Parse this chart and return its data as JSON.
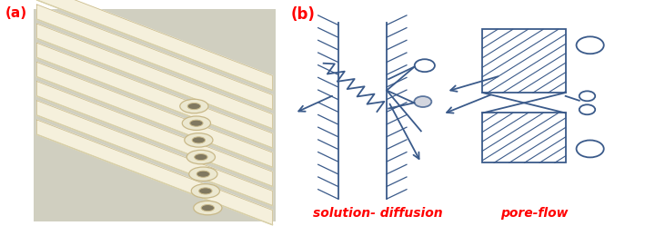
{
  "label_a": "(a)",
  "label_b": "(b)",
  "label_color": "#ff0000",
  "label_fontsize": 11,
  "diagram_color": "#3a5a8a",
  "text_solution_diffusion": "solution- diffusion",
  "text_pore_flow": "pore-flow",
  "text_color": "#ff0000",
  "text_fontsize": 10,
  "bg_color": "#ffffff",
  "fig_width": 7.09,
  "fig_height": 2.49,
  "tube_bg": "#b8b8a0",
  "tube_light": "#f5f0dc",
  "tube_dark": "#c8b888",
  "tube_inner": "#807860"
}
